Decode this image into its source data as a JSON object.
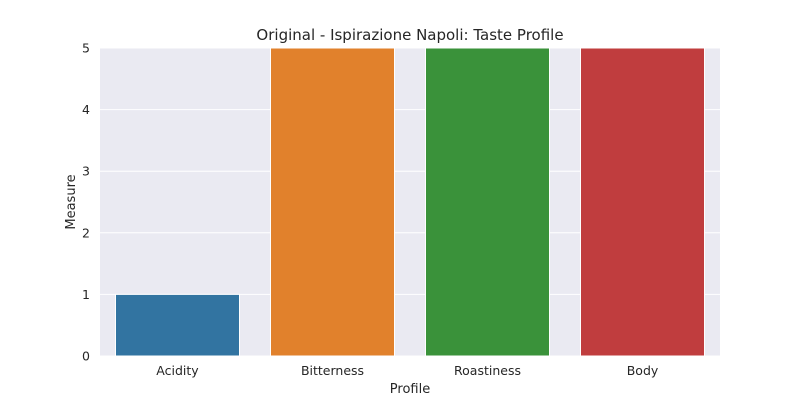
{
  "chart_data": {
    "type": "bar",
    "title": "Original - Ispirazione Napoli: Taste Profile",
    "xlabel": "Profile",
    "ylabel": "Measure",
    "categories": [
      "Acidity",
      "Bitterness",
      "Roastiness",
      "Body"
    ],
    "values": [
      1,
      5,
      5,
      5
    ],
    "colors": [
      "#3274a1",
      "#e1812c",
      "#3a923a",
      "#c03d3e"
    ],
    "ylim": [
      0,
      5
    ],
    "yticks": [
      0,
      1,
      2,
      3,
      4,
      5
    ],
    "grid": true,
    "background": "#eaeaf2"
  }
}
